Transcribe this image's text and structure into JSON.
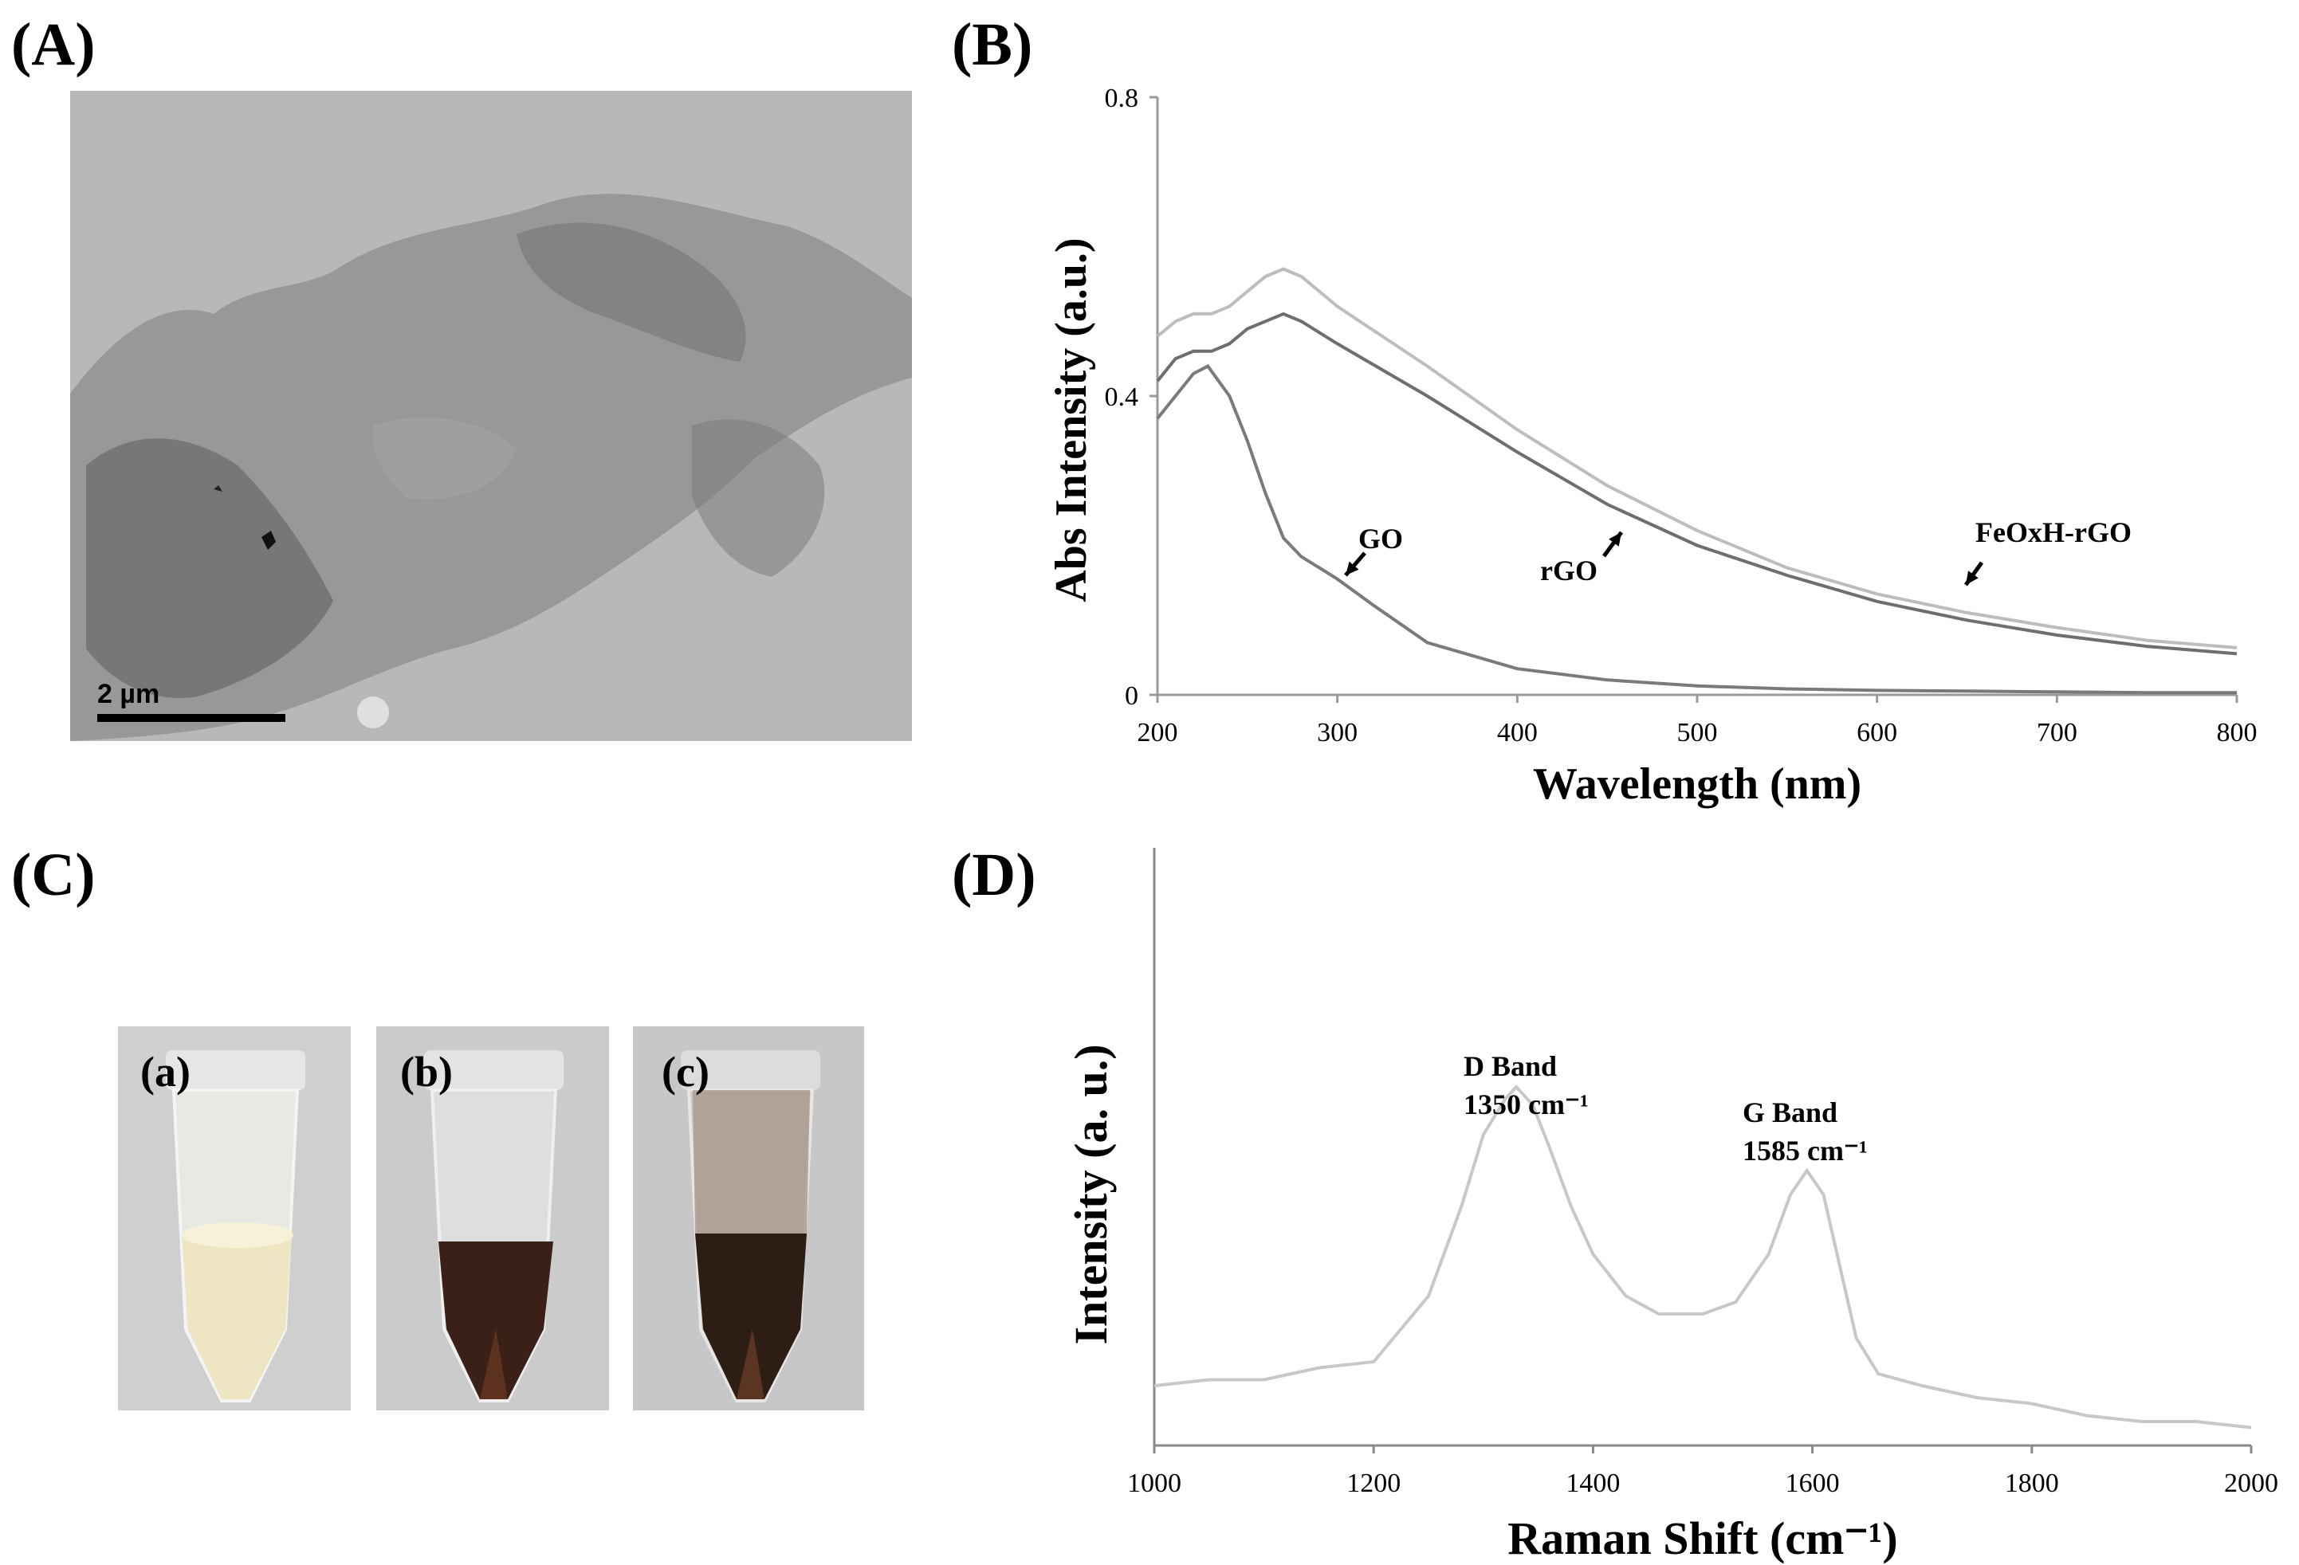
{
  "panels": {
    "a": {
      "letter": "(A)",
      "scale_bar_label": "2 µm"
    },
    "b": {
      "letter": "(B)"
    },
    "c": {
      "letter": "(C)",
      "tubes": [
        "(a)",
        "(b)",
        "(c)"
      ]
    },
    "d": {
      "letter": "(D)"
    }
  },
  "chart_data": [
    {
      "type": "line",
      "panel": "(B)",
      "xlabel": "Wavelength (nm)",
      "ylabel": "Abs Intensity (a.u.)",
      "xlim": [
        200,
        800
      ],
      "ylim": [
        0,
        0.8
      ],
      "xticks": [
        "200",
        "300",
        "400",
        "500",
        "600",
        "700",
        "800"
      ],
      "yticks": [
        "0",
        "0.4",
        "0.8"
      ],
      "grid": false,
      "annotations": [
        "GO",
        "rGO",
        "FeOxH-rGO"
      ],
      "series": [
        {
          "name": "GO",
          "color": "#7a7a7a",
          "x": [
            200,
            210,
            220,
            228,
            240,
            250,
            260,
            270,
            280,
            290,
            300,
            320,
            350,
            400,
            450,
            500,
            550,
            600,
            650,
            700,
            750,
            800
          ],
          "y": [
            0.37,
            0.4,
            0.43,
            0.44,
            0.4,
            0.34,
            0.27,
            0.21,
            0.185,
            0.17,
            0.155,
            0.12,
            0.07,
            0.035,
            0.02,
            0.012,
            0.008,
            0.006,
            0.005,
            0.004,
            0.003,
            0.003
          ]
        },
        {
          "name": "rGO",
          "color": "#6e6e6e",
          "x": [
            200,
            210,
            220,
            230,
            240,
            250,
            260,
            270,
            280,
            300,
            350,
            400,
            450,
            500,
            550,
            600,
            650,
            700,
            750,
            800
          ],
          "y": [
            0.42,
            0.45,
            0.46,
            0.46,
            0.47,
            0.49,
            0.5,
            0.51,
            0.5,
            0.47,
            0.4,
            0.325,
            0.255,
            0.2,
            0.16,
            0.125,
            0.1,
            0.08,
            0.065,
            0.055
          ]
        },
        {
          "name": "FeOxH-rGO",
          "color": "#bdbdbd",
          "x": [
            200,
            210,
            220,
            230,
            240,
            250,
            260,
            270,
            280,
            300,
            350,
            400,
            450,
            500,
            550,
            600,
            650,
            700,
            750,
            800
          ],
          "y": [
            0.48,
            0.5,
            0.51,
            0.51,
            0.52,
            0.54,
            0.56,
            0.57,
            0.56,
            0.52,
            0.44,
            0.355,
            0.28,
            0.22,
            0.17,
            0.135,
            0.11,
            0.09,
            0.073,
            0.063
          ]
        }
      ]
    },
    {
      "type": "line",
      "panel": "(D)",
      "xlabel": "Raman Shift (cm⁻¹)",
      "ylabel": "Intensity (a. u.)",
      "xlim": [
        1000,
        2000
      ],
      "xticks": [
        "1000",
        "1200",
        "1400",
        "1600",
        "1800",
        "2000"
      ],
      "yticks": [],
      "grid": false,
      "annotations": [
        {
          "line1": "D Band",
          "line2": "1350 cm⁻¹",
          "x": 1350
        },
        {
          "line1": "G Band",
          "line2": "1585 cm⁻¹",
          "x": 1585
        }
      ],
      "series": [
        {
          "name": "",
          "color": "#c8c8c8",
          "x": [
            1000,
            1050,
            1100,
            1150,
            1200,
            1250,
            1280,
            1300,
            1320,
            1330,
            1345,
            1360,
            1380,
            1400,
            1430,
            1460,
            1500,
            1530,
            1560,
            1580,
            1595,
            1610,
            1625,
            1640,
            1660,
            1700,
            1750,
            1800,
            1850,
            1900,
            1950,
            2000
          ],
          "y": [
            0.1,
            0.11,
            0.11,
            0.13,
            0.14,
            0.25,
            0.4,
            0.52,
            0.58,
            0.6,
            0.57,
            0.5,
            0.4,
            0.32,
            0.25,
            0.22,
            0.22,
            0.24,
            0.32,
            0.42,
            0.46,
            0.42,
            0.3,
            0.18,
            0.12,
            0.1,
            0.08,
            0.07,
            0.05,
            0.04,
            0.04,
            0.03
          ]
        }
      ]
    }
  ]
}
